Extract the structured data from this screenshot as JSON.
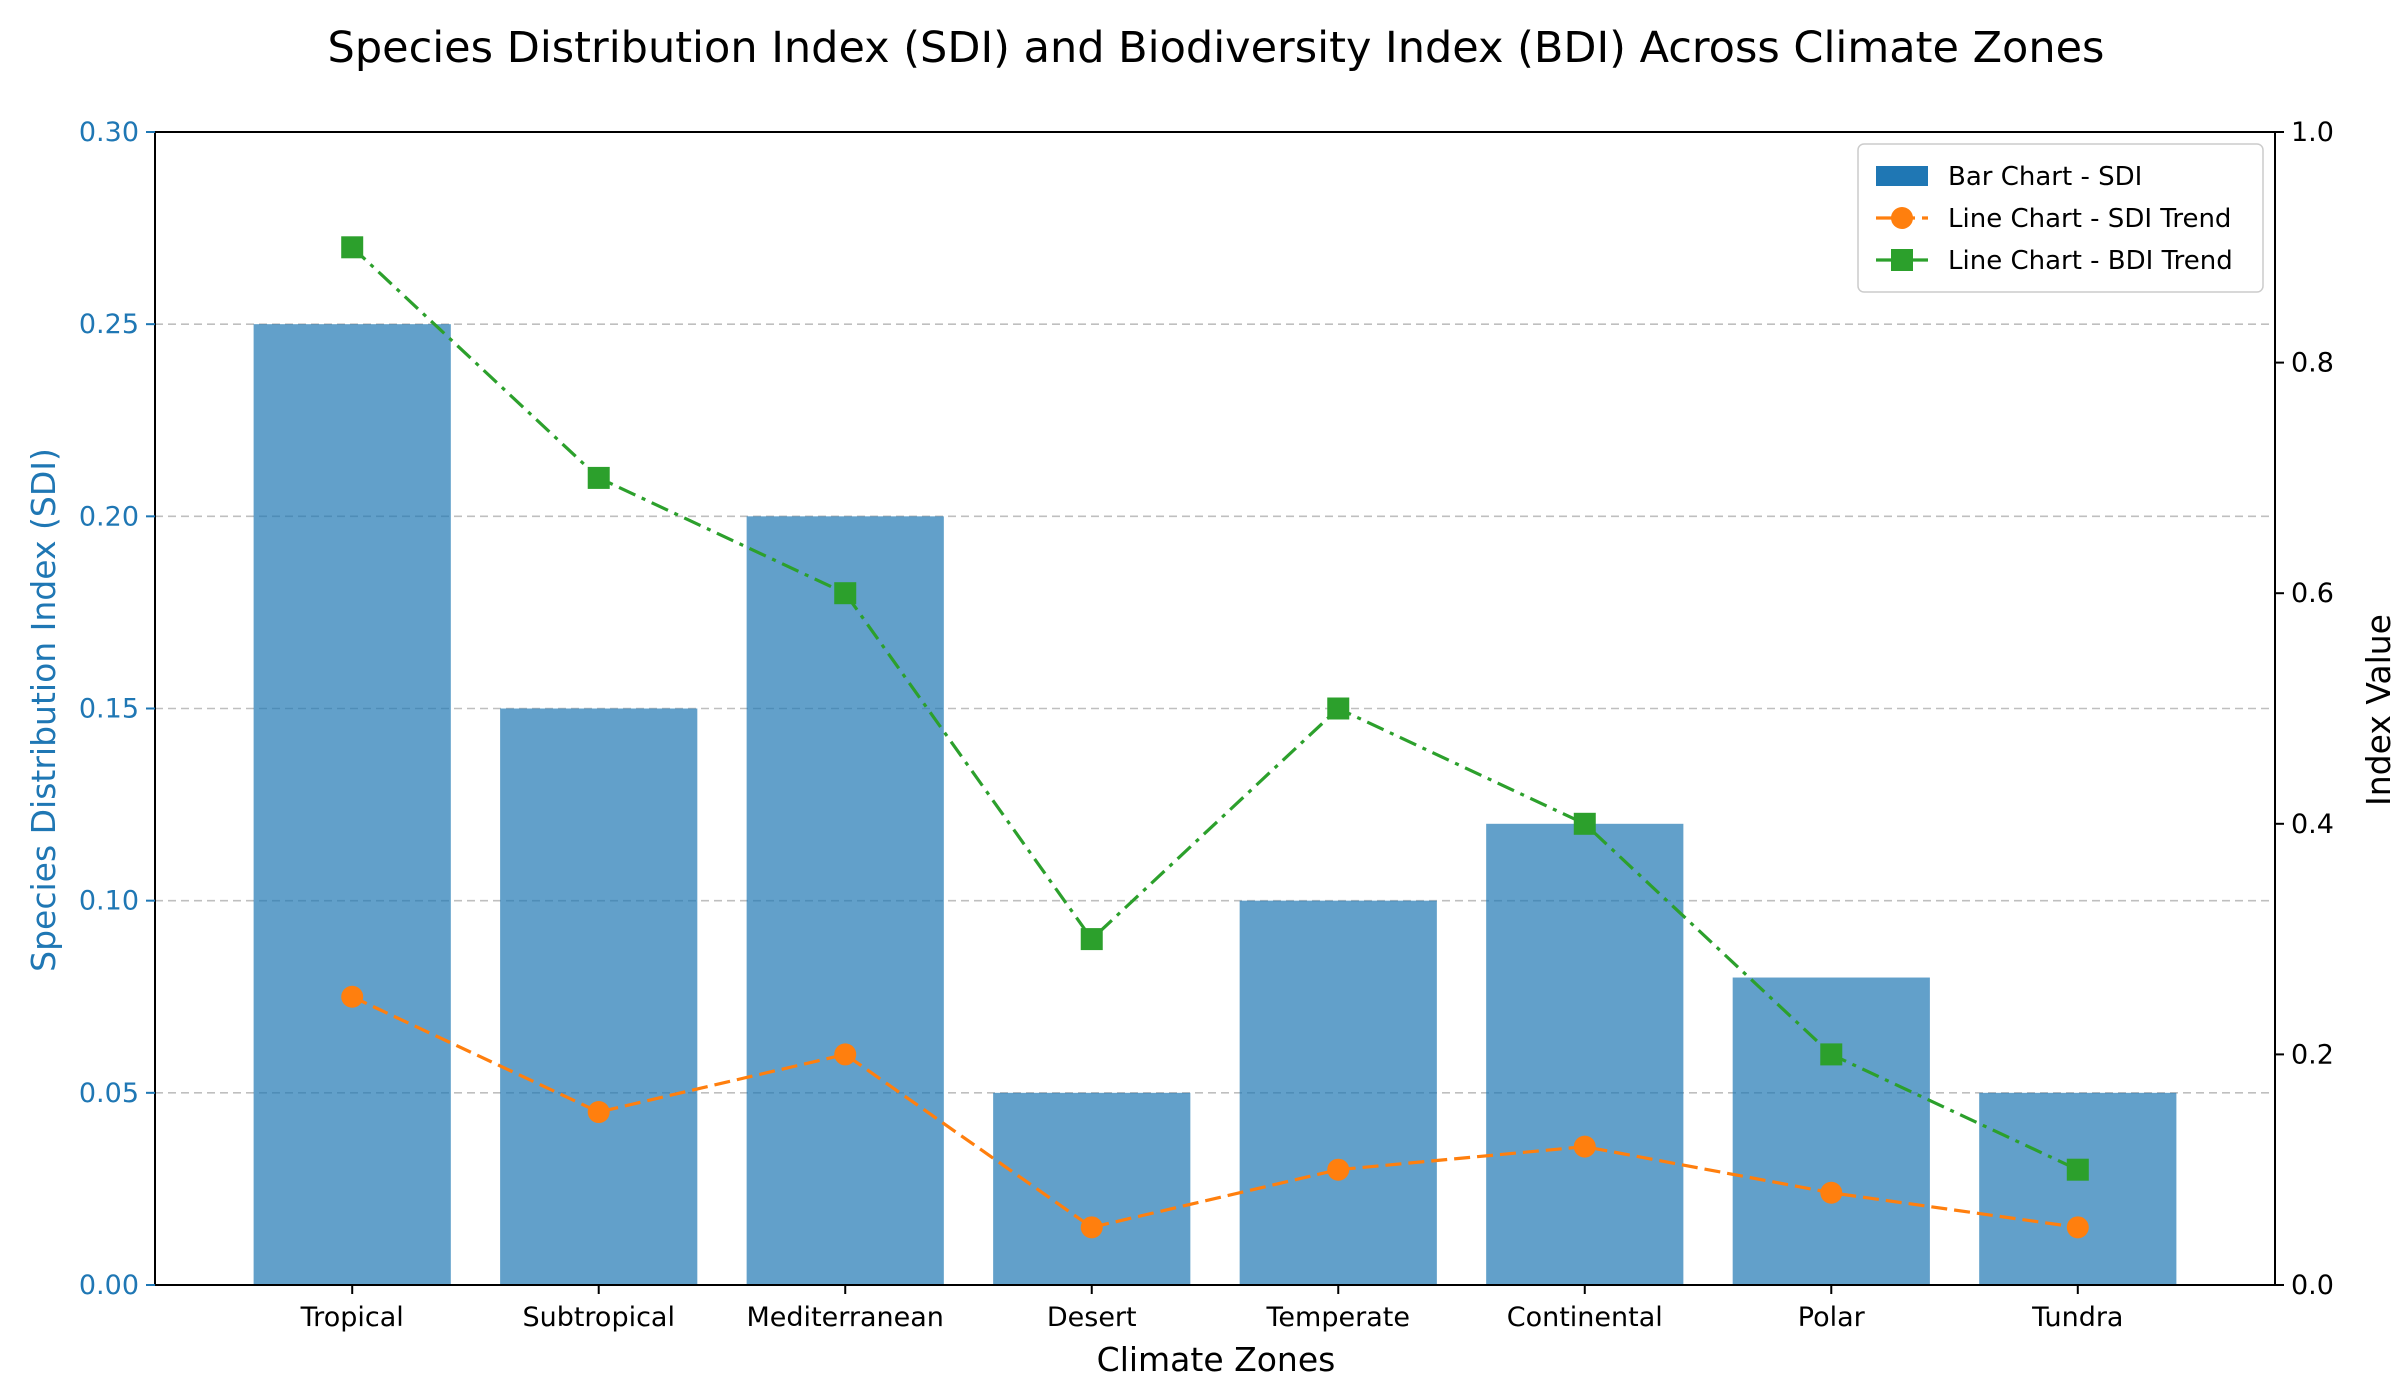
{
  "chart_data": {
    "type": "bar",
    "title": "Species Distribution Index (SDI) and Biodiversity Index (BDI) Across Climate Zones",
    "xlabel": "Climate Zones",
    "ylabel_left": "Species Distribution Index (SDI)",
    "ylabel_right": "Index Value",
    "categories": [
      "Tropical",
      "Subtropical",
      "Mediterranean",
      "Desert",
      "Temperate",
      "Continental",
      "Polar",
      "Tundra"
    ],
    "ylim_left": [
      0,
      0.3
    ],
    "ylim_right": [
      0,
      1.0
    ],
    "yticks_left": [
      "0.00",
      "0.05",
      "0.10",
      "0.15",
      "0.20",
      "0.25",
      "0.30"
    ],
    "yticks_right": [
      "0.0",
      "0.2",
      "0.4",
      "0.6",
      "0.8",
      "1.0"
    ],
    "grid": "horizontal dashed",
    "legend_position": "top-right",
    "series": [
      {
        "name": "Bar Chart - SDI",
        "kind": "bar",
        "axis": "left",
        "color": "#1f77b4",
        "values": [
          0.25,
          0.15,
          0.2,
          0.05,
          0.1,
          0.12,
          0.08,
          0.05
        ]
      },
      {
        "name": "Line Chart - SDI Trend",
        "kind": "line",
        "axis": "right",
        "color": "#ff7f0e",
        "linestyle": "dashed",
        "marker": "circle",
        "values": [
          0.25,
          0.15,
          0.2,
          0.05,
          0.1,
          0.12,
          0.08,
          0.05
        ]
      },
      {
        "name": "Line Chart - BDI Trend",
        "kind": "line",
        "axis": "right",
        "color": "#2ca02c",
        "linestyle": "dash-dot",
        "marker": "square",
        "values": [
          0.9,
          0.7,
          0.6,
          0.3,
          0.5,
          0.4,
          0.2,
          0.1
        ]
      }
    ],
    "left_axis_color": "#1f77b4"
  }
}
